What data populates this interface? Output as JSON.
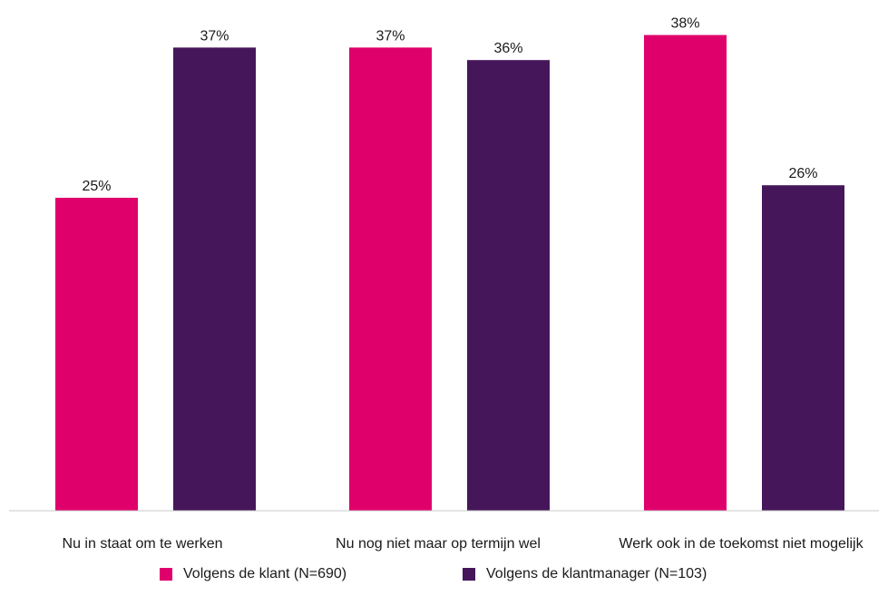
{
  "chart_data": {
    "type": "bar",
    "categories": [
      "Nu in staat om te werken",
      "Nu nog niet maar op termijn wel",
      "Werk ook in de toekomst niet mogelijk"
    ],
    "series": [
      {
        "name": "Volgens de klant (N=690)",
        "values": [
          25,
          37,
          38
        ],
        "labels": [
          "25%",
          "37%",
          "38%"
        ],
        "color": "#e0006c"
      },
      {
        "name": "Volgens de klantmanager (N=103)",
        "values": [
          37,
          36,
          26
        ],
        "labels": [
          "37%",
          "36%",
          "26%"
        ],
        "color": "#45175a"
      }
    ],
    "ylim": [
      0,
      40
    ],
    "grid": false,
    "legend_position": "bottom"
  }
}
